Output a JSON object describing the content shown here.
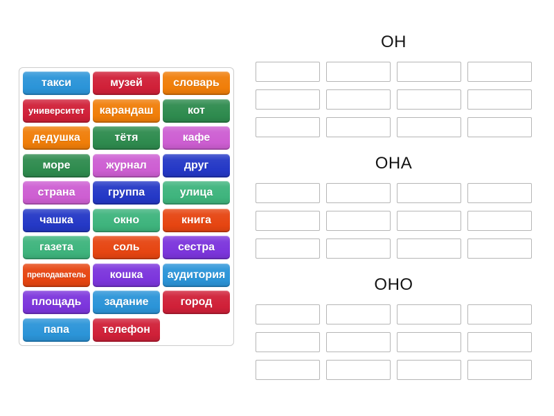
{
  "palette": {
    "azure": "#2b94d8",
    "crimson": "#d02038",
    "orange": "#f07e09",
    "green": "#2e8b4e",
    "orchid": "#cd5ed2",
    "royal": "#2438c6",
    "emerald": "#3eb47d",
    "orangered": "#e64511",
    "violet": "#7c35dc"
  },
  "word_bank": {
    "tiles": [
      {
        "label": "такси",
        "color": "azure"
      },
      {
        "label": "музей",
        "color": "crimson"
      },
      {
        "label": "словарь",
        "color": "orange"
      },
      {
        "label": "университет",
        "color": "crimson"
      },
      {
        "label": "карандаш",
        "color": "orange"
      },
      {
        "label": "кот",
        "color": "green"
      },
      {
        "label": "дедушка",
        "color": "orange"
      },
      {
        "label": "тётя",
        "color": "green"
      },
      {
        "label": "кафе",
        "color": "orchid"
      },
      {
        "label": "море",
        "color": "green"
      },
      {
        "label": "журнал",
        "color": "orchid"
      },
      {
        "label": "друг",
        "color": "royal"
      },
      {
        "label": "страна",
        "color": "orchid"
      },
      {
        "label": "группа",
        "color": "royal"
      },
      {
        "label": "улица",
        "color": "emerald"
      },
      {
        "label": "чашка",
        "color": "royal"
      },
      {
        "label": "окно",
        "color": "emerald"
      },
      {
        "label": "книга",
        "color": "orangered"
      },
      {
        "label": "газета",
        "color": "emerald"
      },
      {
        "label": "соль",
        "color": "orangered"
      },
      {
        "label": "сестра",
        "color": "violet"
      },
      {
        "label": "преподаватель",
        "color": "orangered"
      },
      {
        "label": "кошка",
        "color": "violet"
      },
      {
        "label": "аудитория",
        "color": "azure"
      },
      {
        "label": "площадь",
        "color": "violet"
      },
      {
        "label": "задание",
        "color": "azure"
      },
      {
        "label": "город",
        "color": "crimson"
      },
      {
        "label": "папа",
        "color": "azure"
      },
      {
        "label": "телефон",
        "color": "crimson"
      }
    ]
  },
  "groups": [
    {
      "label": "ОН",
      "slot_rows": 3,
      "slot_cols": 4
    },
    {
      "label": "ОНА",
      "slot_rows": 3,
      "slot_cols": 4
    },
    {
      "label": "ОНО",
      "slot_rows": 3,
      "slot_cols": 4
    }
  ]
}
